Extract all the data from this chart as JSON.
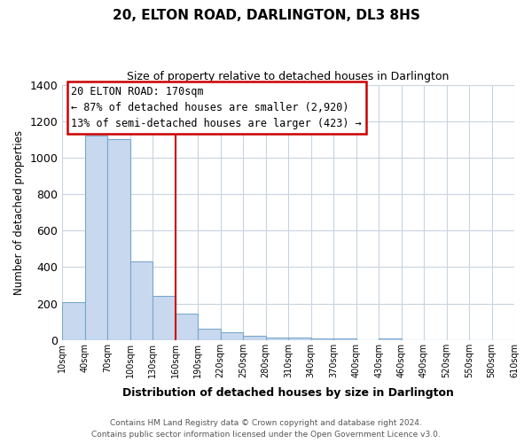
{
  "title": "20, ELTON ROAD, DARLINGTON, DL3 8HS",
  "subtitle": "Size of property relative to detached houses in Darlington",
  "xlabel": "Distribution of detached houses by size in Darlington",
  "ylabel": "Number of detached properties",
  "bar_color": "#c8d8ee",
  "bar_edge_color": "#7aa8cc",
  "background_color": "#ffffff",
  "grid_color": "#c8d4e0",
  "bin_labels": [
    "10sqm",
    "40sqm",
    "70sqm",
    "100sqm",
    "130sqm",
    "160sqm",
    "190sqm",
    "220sqm",
    "250sqm",
    "280sqm",
    "310sqm",
    "340sqm",
    "370sqm",
    "400sqm",
    "430sqm",
    "460sqm",
    "490sqm",
    "520sqm",
    "550sqm",
    "580sqm",
    "610sqm"
  ],
  "bar_values": [
    210,
    1120,
    1100,
    430,
    240,
    145,
    60,
    43,
    22,
    13,
    12,
    10,
    10,
    0,
    10,
    0,
    0,
    0,
    0,
    0
  ],
  "ylim": [
    0,
    1400
  ],
  "yticks": [
    0,
    200,
    400,
    600,
    800,
    1000,
    1200,
    1400
  ],
  "property_line_x": 5,
  "property_label": "20 ELTON ROAD: 170sqm",
  "annotation_line1": "← 87% of detached houses are smaller (2,920)",
  "annotation_line2": "13% of semi-detached houses are larger (423) →",
  "footnote": "Contains HM Land Registry data © Crown copyright and database right 2024.\nContains public sector information licensed under the Open Government Licence v3.0.",
  "property_line_color": "#cc0000",
  "annotation_box_color": "#ffffff",
  "annotation_box_edge_color": "#cc0000"
}
